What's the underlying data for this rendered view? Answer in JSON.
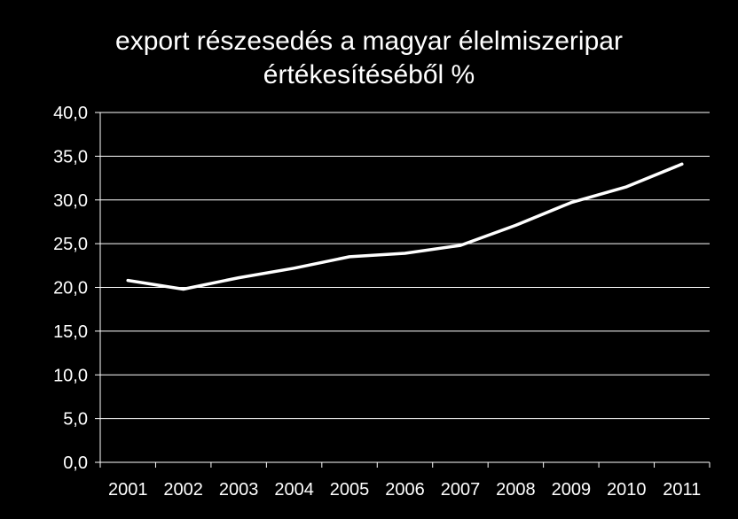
{
  "chart_data": {
    "type": "line",
    "title_line1": "export  részesedés  a magyar  élelmiszeripar",
    "title_line2": "értékesítéséből  %",
    "xlabel": "",
    "ylabel": "",
    "categories": [
      "2001",
      "2002",
      "2003",
      "2004",
      "2005",
      "2006",
      "2007",
      "2008",
      "2009",
      "2010",
      "2011"
    ],
    "values": [
      20.8,
      19.8,
      21.1,
      22.2,
      23.5,
      23.9,
      24.8,
      27.1,
      29.7,
      31.5,
      34.1
    ],
    "ylim": [
      0,
      40
    ],
    "ytick_labels": [
      "0,0",
      "5,0",
      "10,0",
      "15,0",
      "20,0",
      "25,0",
      "30,0",
      "35,0",
      "40,0"
    ],
    "grid": true,
    "legend": "none",
    "colors": {
      "background": "#000000",
      "line": "#ffffff",
      "grid": "#ffffff",
      "text": "#ffffff"
    }
  }
}
